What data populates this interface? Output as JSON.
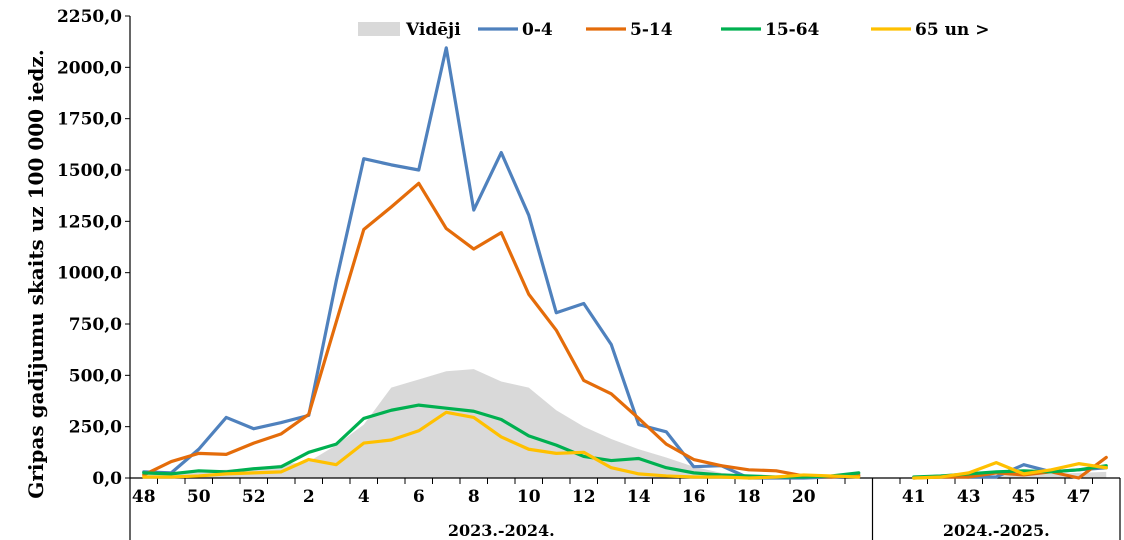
{
  "chart_data": {
    "type": "line",
    "ylabel": "Gripas gadījumu skaits uz 100 000 iedz.",
    "ylim": [
      0,
      2250
    ],
    "y_ticks": [
      "0,0",
      "250,0",
      "500,0",
      "750,0",
      "1000,0",
      "1250,0",
      "1500,0",
      "1750,0",
      "2000,0",
      "2250,0"
    ],
    "weeks": [
      48,
      49,
      50,
      51,
      52,
      1,
      2,
      3,
      4,
      5,
      6,
      7,
      8,
      9,
      10,
      11,
      12,
      13,
      14,
      15,
      16,
      17,
      18,
      19,
      20,
      21,
      22,
      40,
      41,
      42,
      43,
      44,
      45,
      46,
      47,
      48
    ],
    "x_tick_labels": [
      "48",
      "50",
      "52",
      "2",
      "4",
      "6",
      "8",
      "10",
      "12",
      "14",
      "16",
      "18",
      "20",
      "41",
      "43",
      "45",
      "47"
    ],
    "seasons": [
      {
        "label": "2023.-2024.",
        "count": 27
      },
      {
        "label": "2024.-2025.",
        "count": 9
      }
    ],
    "legend": {
      "position": "top"
    },
    "area": {
      "name": "Vidēji",
      "color": "#d9d9d9",
      "values": [
        20,
        25,
        35,
        40,
        50,
        65,
        80,
        160,
        260,
        440,
        480,
        520,
        530,
        470,
        440,
        330,
        250,
        190,
        140,
        100,
        55,
        25,
        12,
        6,
        4,
        3,
        2,
        2,
        3,
        5,
        8,
        12,
        15,
        20,
        25,
        30
      ]
    },
    "series": [
      {
        "name": "0-4",
        "color": "#4f81bd",
        "values": [
          30,
          25,
          140,
          295,
          240,
          270,
          305,
          960,
          1555,
          1525,
          1500,
          2095,
          1305,
          1585,
          1280,
          805,
          850,
          650,
          260,
          225,
          55,
          60,
          0,
          0,
          0,
          5,
          10,
          null,
          0,
          10,
          5,
          5,
          65,
          30,
          40,
          50
        ]
      },
      {
        "name": "5-14",
        "color": "#e46c0a",
        "values": [
          15,
          80,
          120,
          115,
          170,
          215,
          310,
          760,
          1210,
          1320,
          1435,
          1215,
          1115,
          1195,
          895,
          720,
          475,
          410,
          290,
          165,
          90,
          60,
          40,
          35,
          10,
          5,
          15,
          null,
          0,
          5,
          5,
          25,
          15,
          30,
          0,
          100
        ]
      },
      {
        "name": "15-64",
        "color": "#00b050",
        "values": [
          25,
          20,
          35,
          30,
          45,
          55,
          125,
          165,
          290,
          330,
          355,
          340,
          325,
          285,
          205,
          160,
          105,
          85,
          95,
          50,
          25,
          15,
          10,
          5,
          5,
          10,
          25,
          null,
          5,
          10,
          20,
          30,
          35,
          30,
          40,
          60
        ]
      },
      {
        "name": "65 un >",
        "color": "#ffc000",
        "values": [
          5,
          5,
          10,
          20,
          25,
          30,
          90,
          65,
          170,
          185,
          230,
          320,
          295,
          200,
          140,
          120,
          125,
          50,
          20,
          10,
          5,
          5,
          0,
          5,
          15,
          10,
          5,
          null,
          0,
          5,
          25,
          75,
          20,
          40,
          70,
          50
        ]
      }
    ]
  }
}
